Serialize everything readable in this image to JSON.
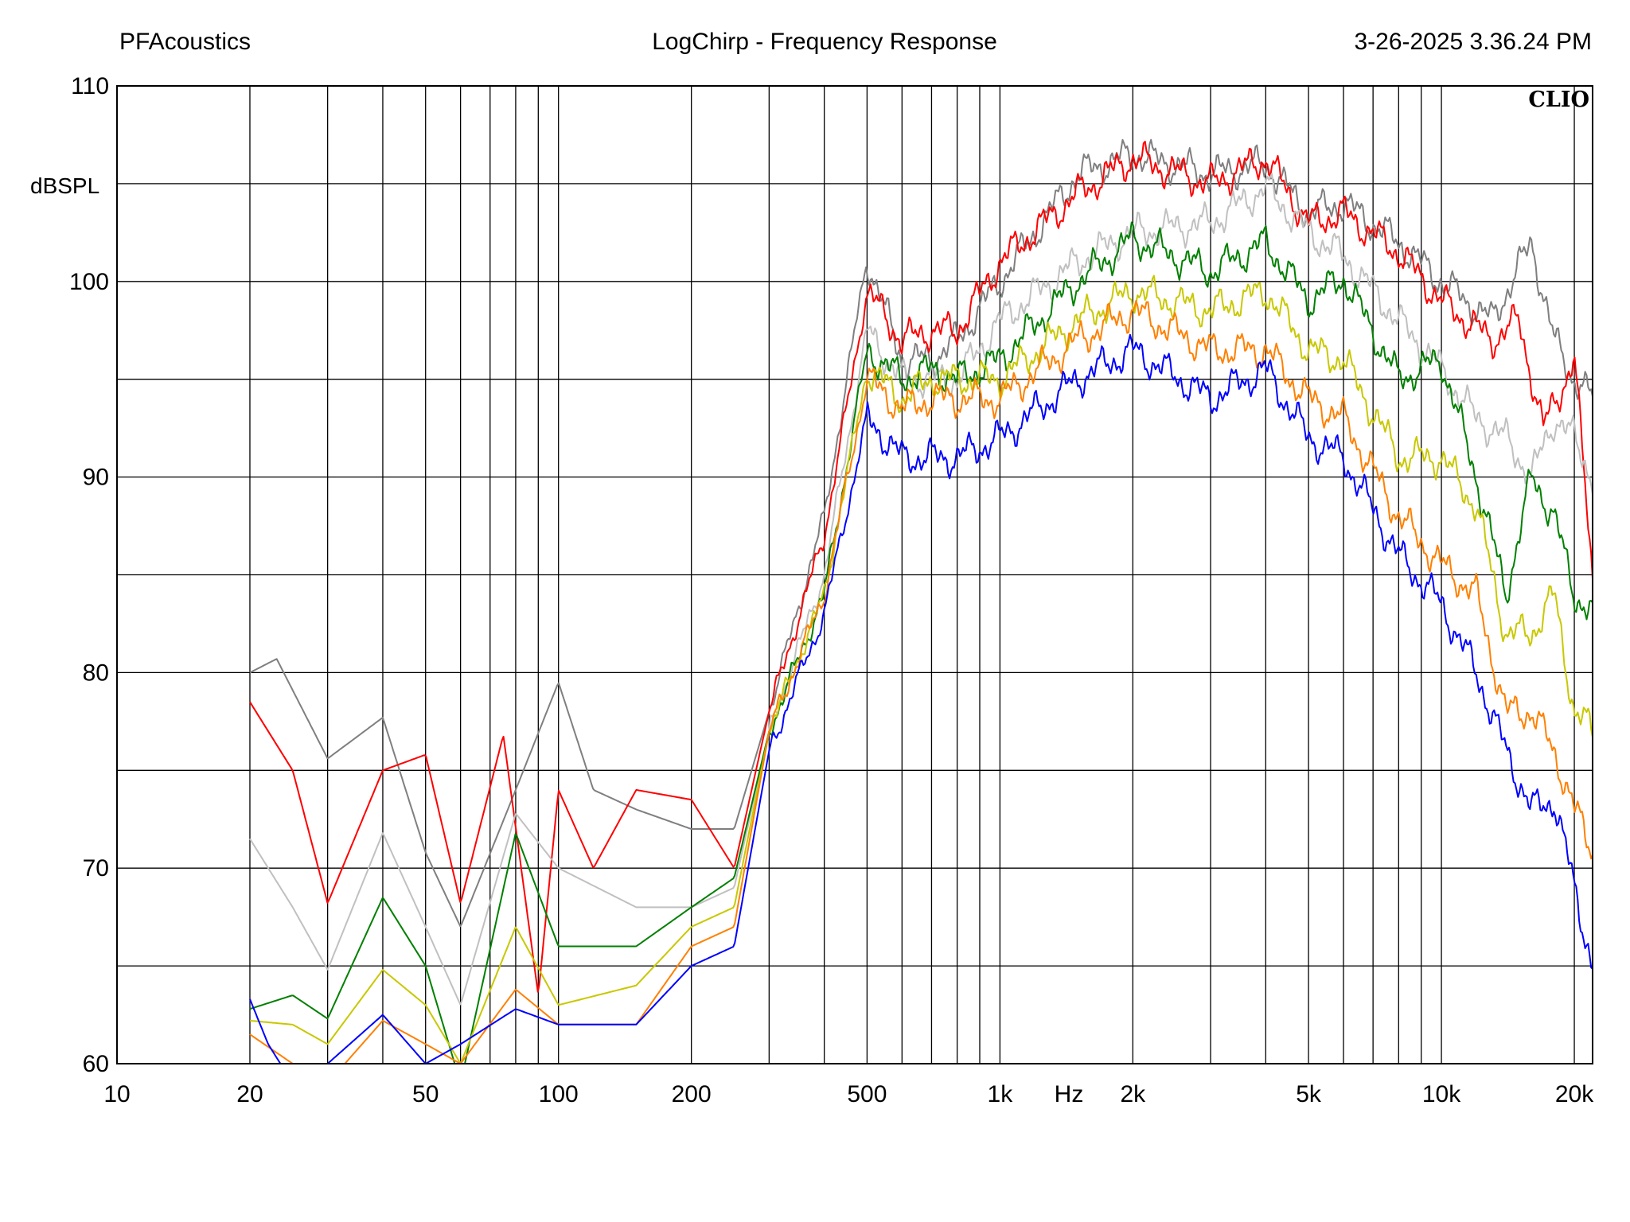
{
  "header": {
    "left": "PFAcoustics",
    "center": "LogChirp - Frequency Response",
    "right": "3-26-2025 3.36.24 PM"
  },
  "brand": "CLIO",
  "chart_data": {
    "type": "line",
    "title": "LogChirp - Frequency Response",
    "xlabel": "Hz",
    "ylabel": "dBSPL",
    "xscale": "log",
    "xlim": [
      10,
      22000
    ],
    "ylim": [
      60,
      110
    ],
    "grid": true,
    "legend": "none",
    "y_ticks": [
      "110",
      "",
      "100",
      "90",
      "80",
      "70",
      "60"
    ],
    "y_tick_values": [
      110,
      105,
      100,
      90,
      80,
      70,
      60
    ],
    "x_ticks": [
      {
        "value": 10,
        "label": "10"
      },
      {
        "value": 20,
        "label": "20"
      },
      {
        "value": 50,
        "label": "50"
      },
      {
        "value": 100,
        "label": "100"
      },
      {
        "value": 200,
        "label": "200"
      },
      {
        "value": 500,
        "label": "500"
      },
      {
        "value": 1000,
        "label": "1k"
      },
      {
        "value": 2000,
        "label": "2k"
      },
      {
        "value": 5000,
        "label": "5k"
      },
      {
        "value": 10000,
        "label": "10k"
      },
      {
        "value": 20000,
        "label": "20k"
      }
    ],
    "series": [
      {
        "color": "#7f7f7f",
        "points": [
          [
            20,
            80
          ],
          [
            23,
            80.7
          ],
          [
            30,
            75.6
          ],
          [
            40,
            77.7
          ],
          [
            50,
            70.8
          ],
          [
            60,
            67
          ],
          [
            80,
            74
          ],
          [
            100,
            79.5
          ],
          [
            120,
            74
          ],
          [
            150,
            73
          ],
          [
            200,
            72
          ],
          [
            250,
            72
          ],
          [
            300,
            78
          ],
          [
            400,
            88
          ],
          [
            500,
            101.2
          ],
          [
            600,
            96
          ],
          [
            700,
            96
          ],
          [
            800,
            97
          ],
          [
            1000,
            100
          ],
          [
            1500,
            105.5
          ],
          [
            2000,
            106.5
          ],
          [
            3000,
            105.5
          ],
          [
            4000,
            106
          ],
          [
            5000,
            103.5
          ],
          [
            6000,
            104
          ],
          [
            8000,
            102
          ],
          [
            10000,
            100
          ],
          [
            13000,
            98
          ],
          [
            16000,
            102
          ],
          [
            18000,
            97
          ],
          [
            20000,
            95
          ],
          [
            22000,
            94
          ]
        ]
      },
      {
        "color": "#ff0000",
        "points": [
          [
            20,
            78.5
          ],
          [
            25,
            75
          ],
          [
            30,
            68.2
          ],
          [
            40,
            75
          ],
          [
            50,
            75.8
          ],
          [
            60,
            68.2
          ],
          [
            75,
            76.8
          ],
          [
            90,
            63.5
          ],
          [
            100,
            74
          ],
          [
            120,
            70
          ],
          [
            150,
            74
          ],
          [
            200,
            73.5
          ],
          [
            250,
            70
          ],
          [
            300,
            78
          ],
          [
            400,
            87
          ],
          [
            500,
            99.5
          ],
          [
            600,
            97
          ],
          [
            700,
            97.5
          ],
          [
            800,
            97.5
          ],
          [
            1000,
            101
          ],
          [
            1500,
            104.5
          ],
          [
            2000,
            106.3
          ],
          [
            3000,
            105
          ],
          [
            4000,
            106.3
          ],
          [
            5000,
            103
          ],
          [
            6000,
            103.5
          ],
          [
            8000,
            101.5
          ],
          [
            10000,
            99
          ],
          [
            13000,
            97
          ],
          [
            15000,
            98
          ],
          [
            17000,
            92.5
          ],
          [
            20000,
            96
          ],
          [
            22000,
            85
          ]
        ]
      },
      {
        "color": "#c0c0c0",
        "points": [
          [
            20,
            71.5
          ],
          [
            25,
            68
          ],
          [
            30,
            64.8
          ],
          [
            40,
            71.8
          ],
          [
            50,
            67
          ],
          [
            60,
            63
          ],
          [
            80,
            72.8
          ],
          [
            100,
            70
          ],
          [
            150,
            68
          ],
          [
            200,
            68
          ],
          [
            250,
            69
          ],
          [
            300,
            77
          ],
          [
            400,
            85
          ],
          [
            500,
            97.5
          ],
          [
            600,
            95
          ],
          [
            700,
            95
          ],
          [
            800,
            95
          ],
          [
            1000,
            98
          ],
          [
            1500,
            101
          ],
          [
            2000,
            102.5
          ],
          [
            3000,
            103
          ],
          [
            4000,
            104.8
          ],
          [
            5000,
            102.5
          ],
          [
            6000,
            101.3
          ],
          [
            8000,
            98
          ],
          [
            10000,
            95.5
          ],
          [
            12000,
            93
          ],
          [
            14000,
            92
          ],
          [
            16000,
            90
          ],
          [
            18000,
            93
          ],
          [
            20000,
            92
          ],
          [
            22000,
            90
          ]
        ]
      },
      {
        "color": "#008000",
        "points": [
          [
            20,
            62.8
          ],
          [
            25,
            63.5
          ],
          [
            30,
            62.3
          ],
          [
            40,
            68.5
          ],
          [
            50,
            65
          ],
          [
            60,
            59
          ],
          [
            80,
            71.8
          ],
          [
            100,
            66
          ],
          [
            150,
            66
          ],
          [
            200,
            68
          ],
          [
            250,
            69.5
          ],
          [
            300,
            77
          ],
          [
            400,
            84
          ],
          [
            500,
            96.5
          ],
          [
            600,
            95
          ],
          [
            700,
            95.5
          ],
          [
            800,
            95
          ],
          [
            1000,
            96
          ],
          [
            1500,
            100
          ],
          [
            2000,
            102.2
          ],
          [
            3000,
            100.5
          ],
          [
            4000,
            102
          ],
          [
            5000,
            99
          ],
          [
            6000,
            100.2
          ],
          [
            8000,
            95
          ],
          [
            10000,
            96
          ],
          [
            12000,
            90
          ],
          [
            14000,
            84
          ],
          [
            16000,
            90
          ],
          [
            18000,
            88
          ],
          [
            20000,
            84
          ],
          [
            22000,
            83
          ]
        ]
      },
      {
        "color": "#c8c800",
        "points": [
          [
            20,
            62.2
          ],
          [
            25,
            62
          ],
          [
            30,
            61
          ],
          [
            40,
            64.8
          ],
          [
            50,
            63
          ],
          [
            60,
            60
          ],
          [
            80,
            67
          ],
          [
            100,
            63
          ],
          [
            150,
            64
          ],
          [
            200,
            67
          ],
          [
            250,
            68
          ],
          [
            300,
            77
          ],
          [
            400,
            84
          ],
          [
            500,
            95.5
          ],
          [
            600,
            94
          ],
          [
            700,
            95
          ],
          [
            800,
            95
          ],
          [
            1000,
            95
          ],
          [
            1500,
            98
          ],
          [
            2000,
            99.5
          ],
          [
            3000,
            98.5
          ],
          [
            4000,
            99.5
          ],
          [
            5000,
            96.5
          ],
          [
            6000,
            96
          ],
          [
            8000,
            91
          ],
          [
            10000,
            91
          ],
          [
            12000,
            88.5
          ],
          [
            14000,
            82
          ],
          [
            16000,
            82
          ],
          [
            18000,
            84
          ],
          [
            20000,
            78
          ],
          [
            22000,
            77
          ]
        ]
      },
      {
        "color": "#ff8000",
        "points": [
          [
            20,
            61.5
          ],
          [
            25,
            60
          ],
          [
            30,
            59
          ],
          [
            40,
            62.2
          ],
          [
            50,
            61
          ],
          [
            60,
            60
          ],
          [
            80,
            63.8
          ],
          [
            100,
            62
          ],
          [
            150,
            62
          ],
          [
            200,
            66
          ],
          [
            250,
            67
          ],
          [
            300,
            77
          ],
          [
            400,
            84
          ],
          [
            500,
            95
          ],
          [
            600,
            93.5
          ],
          [
            700,
            94
          ],
          [
            800,
            94
          ],
          [
            1000,
            94
          ],
          [
            1500,
            97
          ],
          [
            2000,
            98.5
          ],
          [
            3000,
            96.5
          ],
          [
            4000,
            96.5
          ],
          [
            5000,
            94
          ],
          [
            6000,
            93
          ],
          [
            8000,
            88
          ],
          [
            10000,
            85.5
          ],
          [
            12000,
            84
          ],
          [
            14000,
            78
          ],
          [
            16000,
            78
          ],
          [
            18000,
            76
          ],
          [
            20000,
            73
          ],
          [
            22000,
            71
          ]
        ]
      },
      {
        "color": "#0000ff",
        "points": [
          [
            20,
            63.3
          ],
          [
            22,
            61
          ],
          [
            25,
            59
          ],
          [
            30,
            60
          ],
          [
            40,
            62.5
          ],
          [
            50,
            60
          ],
          [
            60,
            61
          ],
          [
            80,
            62.8
          ],
          [
            100,
            62
          ],
          [
            150,
            62
          ],
          [
            200,
            65
          ],
          [
            250,
            66
          ],
          [
            300,
            76
          ],
          [
            400,
            83
          ],
          [
            500,
            93
          ],
          [
            600,
            91
          ],
          [
            700,
            91
          ],
          [
            800,
            91
          ],
          [
            1000,
            92
          ],
          [
            1500,
            95
          ],
          [
            2000,
            96.5
          ],
          [
            3000,
            94
          ],
          [
            4000,
            95.5
          ],
          [
            5000,
            92
          ],
          [
            6000,
            91
          ],
          [
            8000,
            86
          ],
          [
            10000,
            83.5
          ],
          [
            12000,
            80
          ],
          [
            14000,
            76
          ],
          [
            16000,
            73
          ],
          [
            18000,
            73.5
          ],
          [
            20000,
            69
          ],
          [
            22000,
            65
          ]
        ]
      }
    ]
  }
}
